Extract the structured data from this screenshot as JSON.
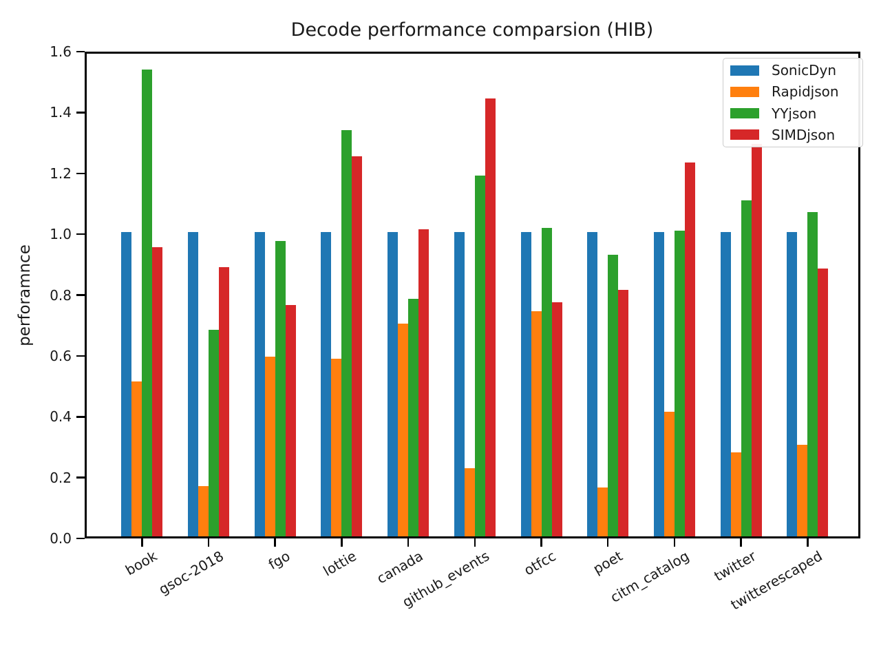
{
  "chart_data": {
    "type": "bar",
    "title": "Decode performance comparsion (HIB)",
    "xlabel": "",
    "ylabel": "perforamnce",
    "ylim": [
      0.0,
      1.6
    ],
    "ytick_step": 0.2,
    "grid": false,
    "legend_position": "upper right",
    "categories": [
      "book",
      "gsoc-2018",
      "fgo",
      "lottie",
      "canada",
      "github_events",
      "otfcc",
      "poet",
      "citm_catalog",
      "twitter",
      "twitterescaped"
    ],
    "series": [
      {
        "name": "SonicDyn",
        "color": "#1f77b4",
        "values": [
          1.0,
          1.0,
          1.0,
          1.0,
          1.0,
          1.0,
          1.0,
          1.0,
          1.0,
          1.0,
          1.0
        ]
      },
      {
        "name": "Rapidjson",
        "color": "#ff7f0e",
        "values": [
          0.51,
          0.165,
          0.59,
          0.585,
          0.7,
          0.225,
          0.74,
          0.16,
          0.41,
          0.275,
          0.3
        ]
      },
      {
        "name": "YYjson",
        "color": "#2ca02c",
        "values": [
          1.535,
          0.68,
          0.97,
          1.335,
          0.78,
          1.185,
          1.015,
          0.925,
          1.005,
          1.105,
          1.065
        ]
      },
      {
        "name": "SIMDjson",
        "color": "#d62728",
        "values": [
          0.95,
          0.885,
          0.76,
          1.25,
          1.01,
          1.44,
          0.77,
          0.81,
          1.23,
          1.29,
          0.88
        ]
      }
    ]
  }
}
